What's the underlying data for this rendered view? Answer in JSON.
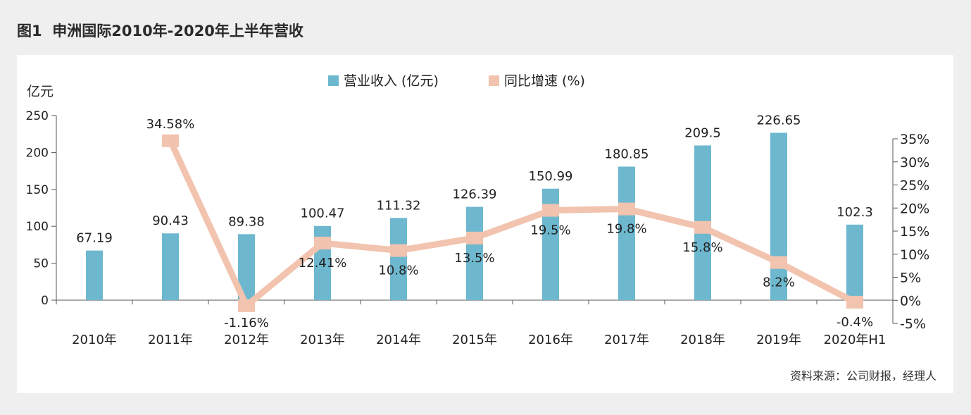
{
  "title": "图1  申洲国际2010年-2020年上半年营收",
  "source": "资料来源：公司财报，经理人",
  "chart_data": {
    "type": "bar",
    "categories": [
      "2010年",
      "2011年",
      "2012年",
      "2013年",
      "2014年",
      "2015年",
      "2016年",
      "2017年",
      "2018年",
      "2019年",
      "2020年H1"
    ],
    "y_unit_label": "亿元",
    "ylim": [
      0,
      250
    ],
    "yticks": [
      0,
      50,
      100,
      150,
      200,
      250
    ],
    "y2lim": [
      -5,
      35
    ],
    "y2ticks": [
      "-5%",
      "0%",
      "5%",
      "10%",
      "15%",
      "20%",
      "25%",
      "30%",
      "35%"
    ],
    "y2tick_values": [
      -5,
      0,
      5,
      10,
      15,
      20,
      25,
      30,
      35
    ],
    "legend_position": "top-center",
    "grid": false,
    "series": [
      {
        "name": "营业收入 (亿元)",
        "type": "bar",
        "axis": "left",
        "color": "#6db8cf",
        "values": [
          67.19,
          90.43,
          89.38,
          100.47,
          111.32,
          126.39,
          150.99,
          180.85,
          209.5,
          226.65,
          102.3
        ],
        "labels": [
          "67.19",
          "90.43",
          "89.38",
          "100.47",
          "111.32",
          "126.39",
          "150.99",
          "180.85",
          "209.5",
          "226.65",
          "102.3"
        ]
      },
      {
        "name": "同比增速 (%)",
        "type": "line",
        "axis": "right",
        "color": "#f2c3ae",
        "values": [
          null,
          34.58,
          -1.16,
          12.41,
          10.8,
          13.5,
          19.5,
          19.8,
          15.8,
          8.2,
          -0.4
        ],
        "labels": [
          null,
          "34.58%",
          "-1.16%",
          "12.41%",
          "10.8%",
          "13.5%",
          "19.5%",
          "19.8%",
          "15.8%",
          "8.2%",
          "-0.4%"
        ]
      }
    ]
  }
}
